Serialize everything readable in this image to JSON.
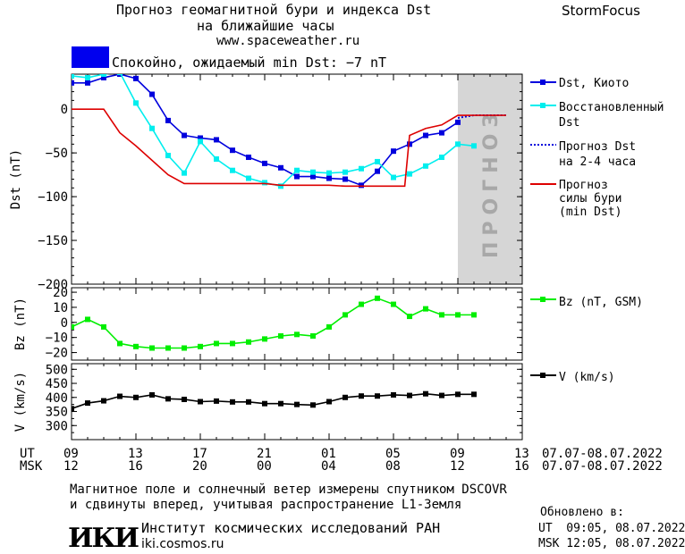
{
  "header": {
    "title_line1": "Прогноз геомагнитной бури и индекса Dst",
    "title_line2": "на ближайшие часы",
    "url": "www.spaceweather.ru",
    "brand": "StormFocus",
    "status": "Спокойно, ожидаемый min Dst: −7 nT",
    "status_color": "#0000ee"
  },
  "forecast_label": "ПРОГНОЗ",
  "legend": {
    "dst_kyoto": "Dst, Киото",
    "reconstructed_1": "Восстановленный",
    "reconstructed_2": "Dst",
    "forecast_1": "Прогноз Dst",
    "forecast_2": "на 2-4 часа",
    "storm_1": "Прогноз",
    "storm_2": "силы бури",
    "storm_3": "(min Dst)",
    "bz": "Bz (nT, GSM)",
    "v": "V (km/s)"
  },
  "time_axis": {
    "ut_label": "UT",
    "msk_label": "MSK",
    "ut_ticks": [
      "09",
      "13",
      "17",
      "21",
      "01",
      "05",
      "09",
      "13"
    ],
    "msk_ticks": [
      "12",
      "16",
      "20",
      "00",
      "04",
      "08",
      "12",
      "16"
    ],
    "date_range": "07.07-08.07.2022"
  },
  "footer": {
    "note_line1": "Магнитное поле и солнечный ветер измерены спутником DSCOVR",
    "note_line2": "и сдвинуты вперед, учитывая распространение L1-Земля",
    "logo": "ИКИ",
    "institute": "Институт космических исследований РАН",
    "site": "iki.cosmos.ru",
    "updated_label": "Обновлено в:",
    "updated_ut": "UT  09:05, 08.07.2022",
    "updated_msk": "MSK 12:05, 08.07.2022"
  },
  "chart_data": [
    {
      "type": "line",
      "ylabel": "Dst (nT)",
      "ylim": [
        -200,
        40
      ],
      "yticks": [
        0,
        -50,
        -100,
        -150,
        -200
      ],
      "xlim": [
        0,
        28
      ],
      "forecast_region": [
        24,
        28
      ],
      "series": [
        {
          "name": "Dst, Киото",
          "color": "#0000dd",
          "marker": "square",
          "x": [
            0,
            1,
            2,
            3,
            4,
            5,
            6,
            7,
            8,
            9,
            10,
            11,
            12,
            13,
            14,
            15,
            16,
            17,
            18,
            19,
            20,
            21,
            22,
            23,
            24
          ],
          "y": [
            30,
            30,
            36,
            40,
            35,
            17,
            -13,
            -30,
            -33,
            -35,
            -47,
            -55,
            -62,
            -67,
            -77,
            -77,
            -79,
            -80,
            -87,
            -71,
            -48,
            -40,
            -30,
            -27,
            -15
          ]
        },
        {
          "name": "Восстановленный Dst",
          "color": "#00eeee",
          "marker": "square",
          "x": [
            0,
            1,
            2,
            3,
            4,
            5,
            6,
            7,
            8,
            9,
            10,
            11,
            12,
            13,
            14,
            15,
            16,
            17,
            18,
            19,
            20,
            21,
            22,
            23,
            24,
            25
          ],
          "y": [
            38,
            36,
            40,
            42,
            7,
            -22,
            -53,
            -73,
            -37,
            -57,
            -70,
            -79,
            -84,
            -88,
            -70,
            -72,
            -73,
            -72,
            -68,
            -60,
            -78,
            -74,
            -65,
            -55,
            -40,
            -42
          ]
        },
        {
          "name": "Прогноз Dst на 2-4 часа",
          "color": "#0000dd",
          "dash": true,
          "x": [
            24,
            25,
            26,
            27
          ],
          "y": [
            -10,
            -7,
            -7,
            -7
          ]
        },
        {
          "name": "Прогноз силы бури (min Dst)",
          "color": "#dd0000",
          "x": [
            0,
            2,
            3,
            4,
            6,
            7,
            8,
            9,
            10,
            11,
            12,
            13,
            14,
            15,
            16,
            17,
            18,
            19,
            20,
            20.7,
            21,
            22,
            23,
            24,
            25,
            26,
            27
          ],
          "y": [
            0,
            0,
            -27,
            -42,
            -75,
            -85,
            -85,
            -85,
            -85,
            -85,
            -85,
            -87,
            -87,
            -87,
            -87,
            -88,
            -88,
            -88,
            -88,
            -88,
            -30,
            -22,
            -18,
            -7,
            -7,
            -7,
            -7
          ]
        }
      ]
    },
    {
      "type": "line",
      "ylabel": "Bz (nT)",
      "ylim": [
        -25,
        23
      ],
      "yticks": [
        20,
        10,
        0,
        -10,
        -20
      ],
      "series": [
        {
          "name": "Bz (nT, GSM)",
          "color": "#00ee00",
          "marker": "square",
          "x": [
            0,
            1,
            2,
            3,
            4,
            5,
            6,
            7,
            8,
            9,
            10,
            11,
            12,
            13,
            14,
            15,
            16,
            17,
            18,
            19,
            20,
            21,
            22,
            23,
            24,
            25
          ],
          "y": [
            -3,
            2,
            -3,
            -14,
            -16,
            -17,
            -17,
            -17,
            -16,
            -14,
            -14,
            -13,
            -11,
            -9,
            -8,
            -9,
            -3,
            5,
            12,
            16,
            12,
            4,
            9,
            5,
            5,
            5
          ]
        }
      ]
    },
    {
      "type": "line",
      "ylabel": "V (km/s)",
      "ylim": [
        250,
        520
      ],
      "yticks": [
        500,
        450,
        400,
        350,
        300
      ],
      "series": [
        {
          "name": "V (km/s)",
          "color": "#000000",
          "marker": "square",
          "x": [
            0,
            1,
            2,
            3,
            4,
            5,
            6,
            7,
            8,
            9,
            10,
            11,
            12,
            13,
            14,
            15,
            16,
            17,
            18,
            19,
            20,
            21,
            22,
            23,
            24,
            25
          ],
          "y": [
            360,
            380,
            388,
            404,
            400,
            409,
            395,
            393,
            385,
            387,
            384,
            384,
            378,
            378,
            375,
            373,
            385,
            400,
            405,
            405,
            409,
            407,
            413,
            407,
            411,
            411
          ]
        }
      ]
    }
  ]
}
